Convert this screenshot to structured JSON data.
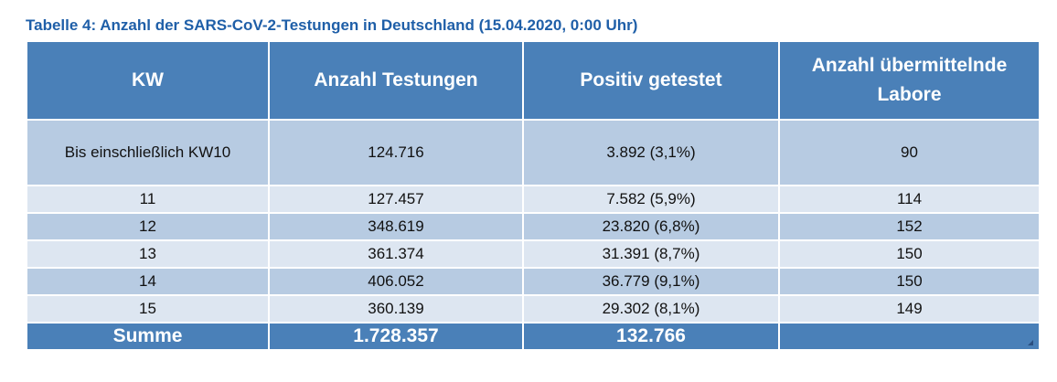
{
  "caption": "Tabelle 4: Anzahl der SARS-CoV-2-Testungen in Deutschland (15.04.2020, 0:00 Uhr)",
  "table": {
    "headers": [
      "KW",
      "Anzahl Testungen",
      "Positiv getestet",
      "Anzahl übermittelnde Labore"
    ],
    "rows": [
      [
        "Bis einschließlich KW10",
        "124.716",
        "3.892 (3,1%)",
        "90"
      ],
      [
        "11",
        "127.457",
        "7.582 (5,9%)",
        "114"
      ],
      [
        "12",
        "348.619",
        "23.820 (6,8%)",
        "152"
      ],
      [
        "13",
        "361.374",
        "31.391 (8,7%)",
        "150"
      ],
      [
        "14",
        "406.052",
        "36.779 (9,1%)",
        "150"
      ],
      [
        "15",
        "360.139",
        "29.302 (8,1%)",
        "149"
      ]
    ],
    "sum": [
      "Summe",
      "1.728.357",
      "132.766",
      ""
    ]
  },
  "colors": {
    "caption": "#1f5fa8",
    "header_bg": "#4a80b8",
    "row_dark": "#b7cbe2",
    "row_light": "#dde6f1"
  }
}
